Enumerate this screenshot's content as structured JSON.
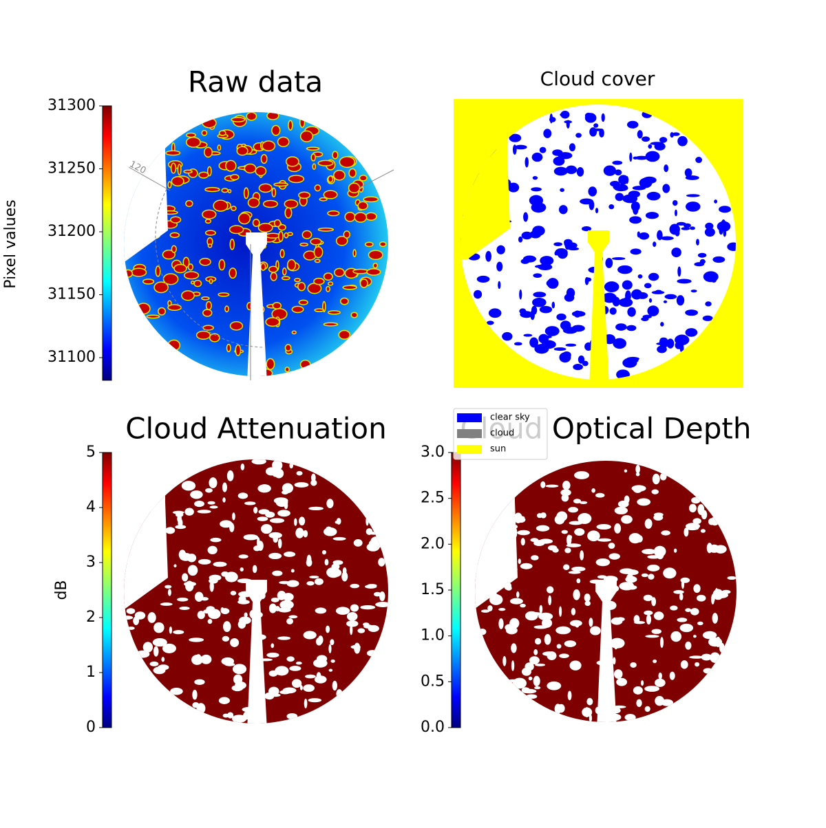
{
  "chart_data": [
    {
      "type": "image",
      "title": "Raw data",
      "colorbar_label": "Pixel values",
      "colormap": "jet",
      "ylim": [
        31082,
        31300
      ],
      "yticks": [
        31100,
        31150,
        31200,
        31250,
        31300
      ],
      "annotations": [
        "120"
      ]
    },
    {
      "type": "mask",
      "title": "Cloud cover",
      "series": [
        {
          "name": "clear sky",
          "color": "#0000ff"
        },
        {
          "name": "cloud",
          "color": "#808080"
        },
        {
          "name": "sun",
          "color": "#ffff00"
        }
      ]
    },
    {
      "type": "image",
      "title": "Cloud Attenuation",
      "colorbar_label": "dB",
      "colormap": "jet",
      "ylim": [
        0,
        5
      ],
      "yticks": [
        0,
        1,
        2,
        3,
        4,
        5
      ]
    },
    {
      "type": "image",
      "title": "Cloud Optical Depth",
      "colormap": "jet",
      "ylim": [
        0,
        3
      ],
      "yticks": [
        {
          "value": 0,
          "label": "0.0"
        },
        {
          "value": 0.5,
          "label": "0.5"
        },
        {
          "value": 1,
          "label": "1.0"
        },
        {
          "value": 1.5,
          "label": "1.5"
        },
        {
          "value": 2,
          "label": "2.0"
        },
        {
          "value": 2.5,
          "label": "2.5"
        },
        {
          "value": 3,
          "label": "3.0"
        }
      ]
    }
  ]
}
